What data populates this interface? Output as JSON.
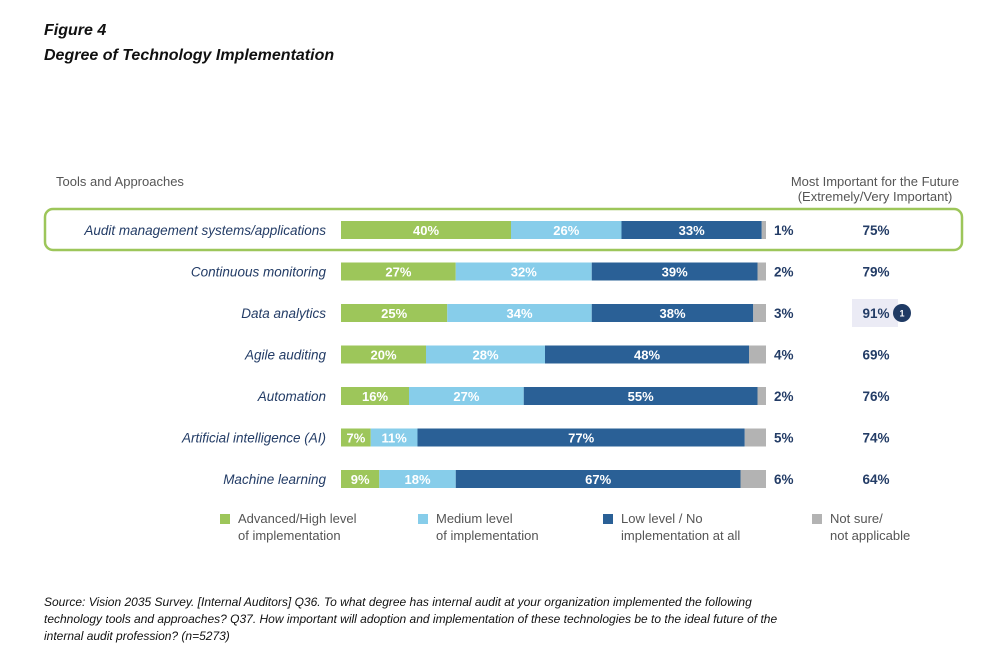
{
  "figure_label": "Figure 4",
  "title": "Degree of Technology Implementation",
  "chart_data": {
    "type": "bar",
    "orientation": "horizontal",
    "stacked": true,
    "left_header": "Tools and Approaches",
    "right_header_line1": "Most Important for the Future",
    "right_header_line2": "(Extremely/Very Important)",
    "categories": [
      "Audit management systems/applications",
      "Continuous monitoring",
      "Data analytics",
      "Agile auditing",
      "Automation",
      "Artificial intelligence (AI)",
      "Machine learning"
    ],
    "series": [
      {
        "name": "Advanced/High level of implementation",
        "legend_line1": "Advanced/High level",
        "legend_line2": "of implementation",
        "color": "#9dc65a",
        "values": [
          40,
          27,
          25,
          20,
          16,
          7,
          9
        ]
      },
      {
        "name": "Medium level of implementation",
        "legend_line1": "Medium level",
        "legend_line2": "of implementation",
        "color": "#87cdea",
        "values": [
          26,
          32,
          34,
          28,
          27,
          11,
          18
        ]
      },
      {
        "name": "Low level / No implementation at all",
        "legend_line1": "Low level / No",
        "legend_line2": "implementation at all",
        "color": "#2a6096",
        "values": [
          33,
          39,
          38,
          48,
          55,
          77,
          67
        ]
      },
      {
        "name": "Not sure/ not applicable",
        "legend_line1": "Not sure/",
        "legend_line2": "not applicable",
        "color": "#b3b3b3",
        "values": [
          1,
          2,
          3,
          4,
          2,
          5,
          6
        ]
      }
    ],
    "future_importance": [
      75,
      79,
      91,
      69,
      76,
      74,
      64
    ],
    "highlighted_row": "Audit management systems/applications",
    "highlighted_value_badge": {
      "row": "Data analytics",
      "label": "1"
    },
    "xlim": [
      0,
      100
    ],
    "highlight_color": "#9dc65a",
    "text_color": "#233c66"
  },
  "source": "Source: Vision 2035 Survey. [Internal Auditors] Q36. To what degree has internal audit at your organization implemented the following technology tools and approaches? Q37. How important will adoption and implementation of these technologies be to the ideal future of the internal audit profession? (n=5273)"
}
